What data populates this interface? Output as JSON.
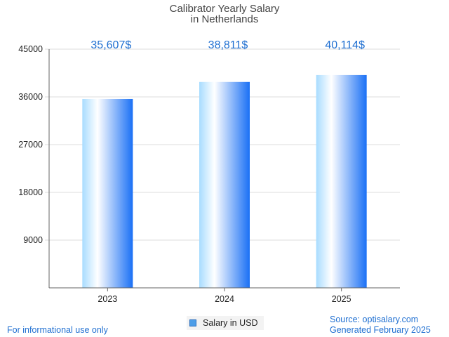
{
  "chart_data": {
    "type": "bar",
    "title": "Calibrator Yearly Salary",
    "subtitle": "in Netherlands",
    "categories": [
      "2023",
      "2024",
      "2025"
    ],
    "series": [
      {
        "name": "Salary in USD",
        "values": [
          35607,
          38811,
          40114
        ]
      }
    ],
    "data_labels": [
      "35,607$",
      "38,811$",
      "40,114$"
    ],
    "yticks": [
      "9000",
      "18000",
      "27000",
      "36000",
      "45000"
    ],
    "ylim": [
      0,
      45000
    ],
    "grid": true,
    "legend_position": "bottom"
  },
  "footer": {
    "left_note": "For informational use only",
    "source": "Source: optisalary.com",
    "generated": "Generated February 2025"
  },
  "colors": {
    "bar_light": "#ffffff",
    "bar_mid": "#a8dcff",
    "bar_dark": "#1a70f5",
    "label": "#1f6fd1",
    "grid": "#dcdcdc",
    "axis": "#666666"
  }
}
